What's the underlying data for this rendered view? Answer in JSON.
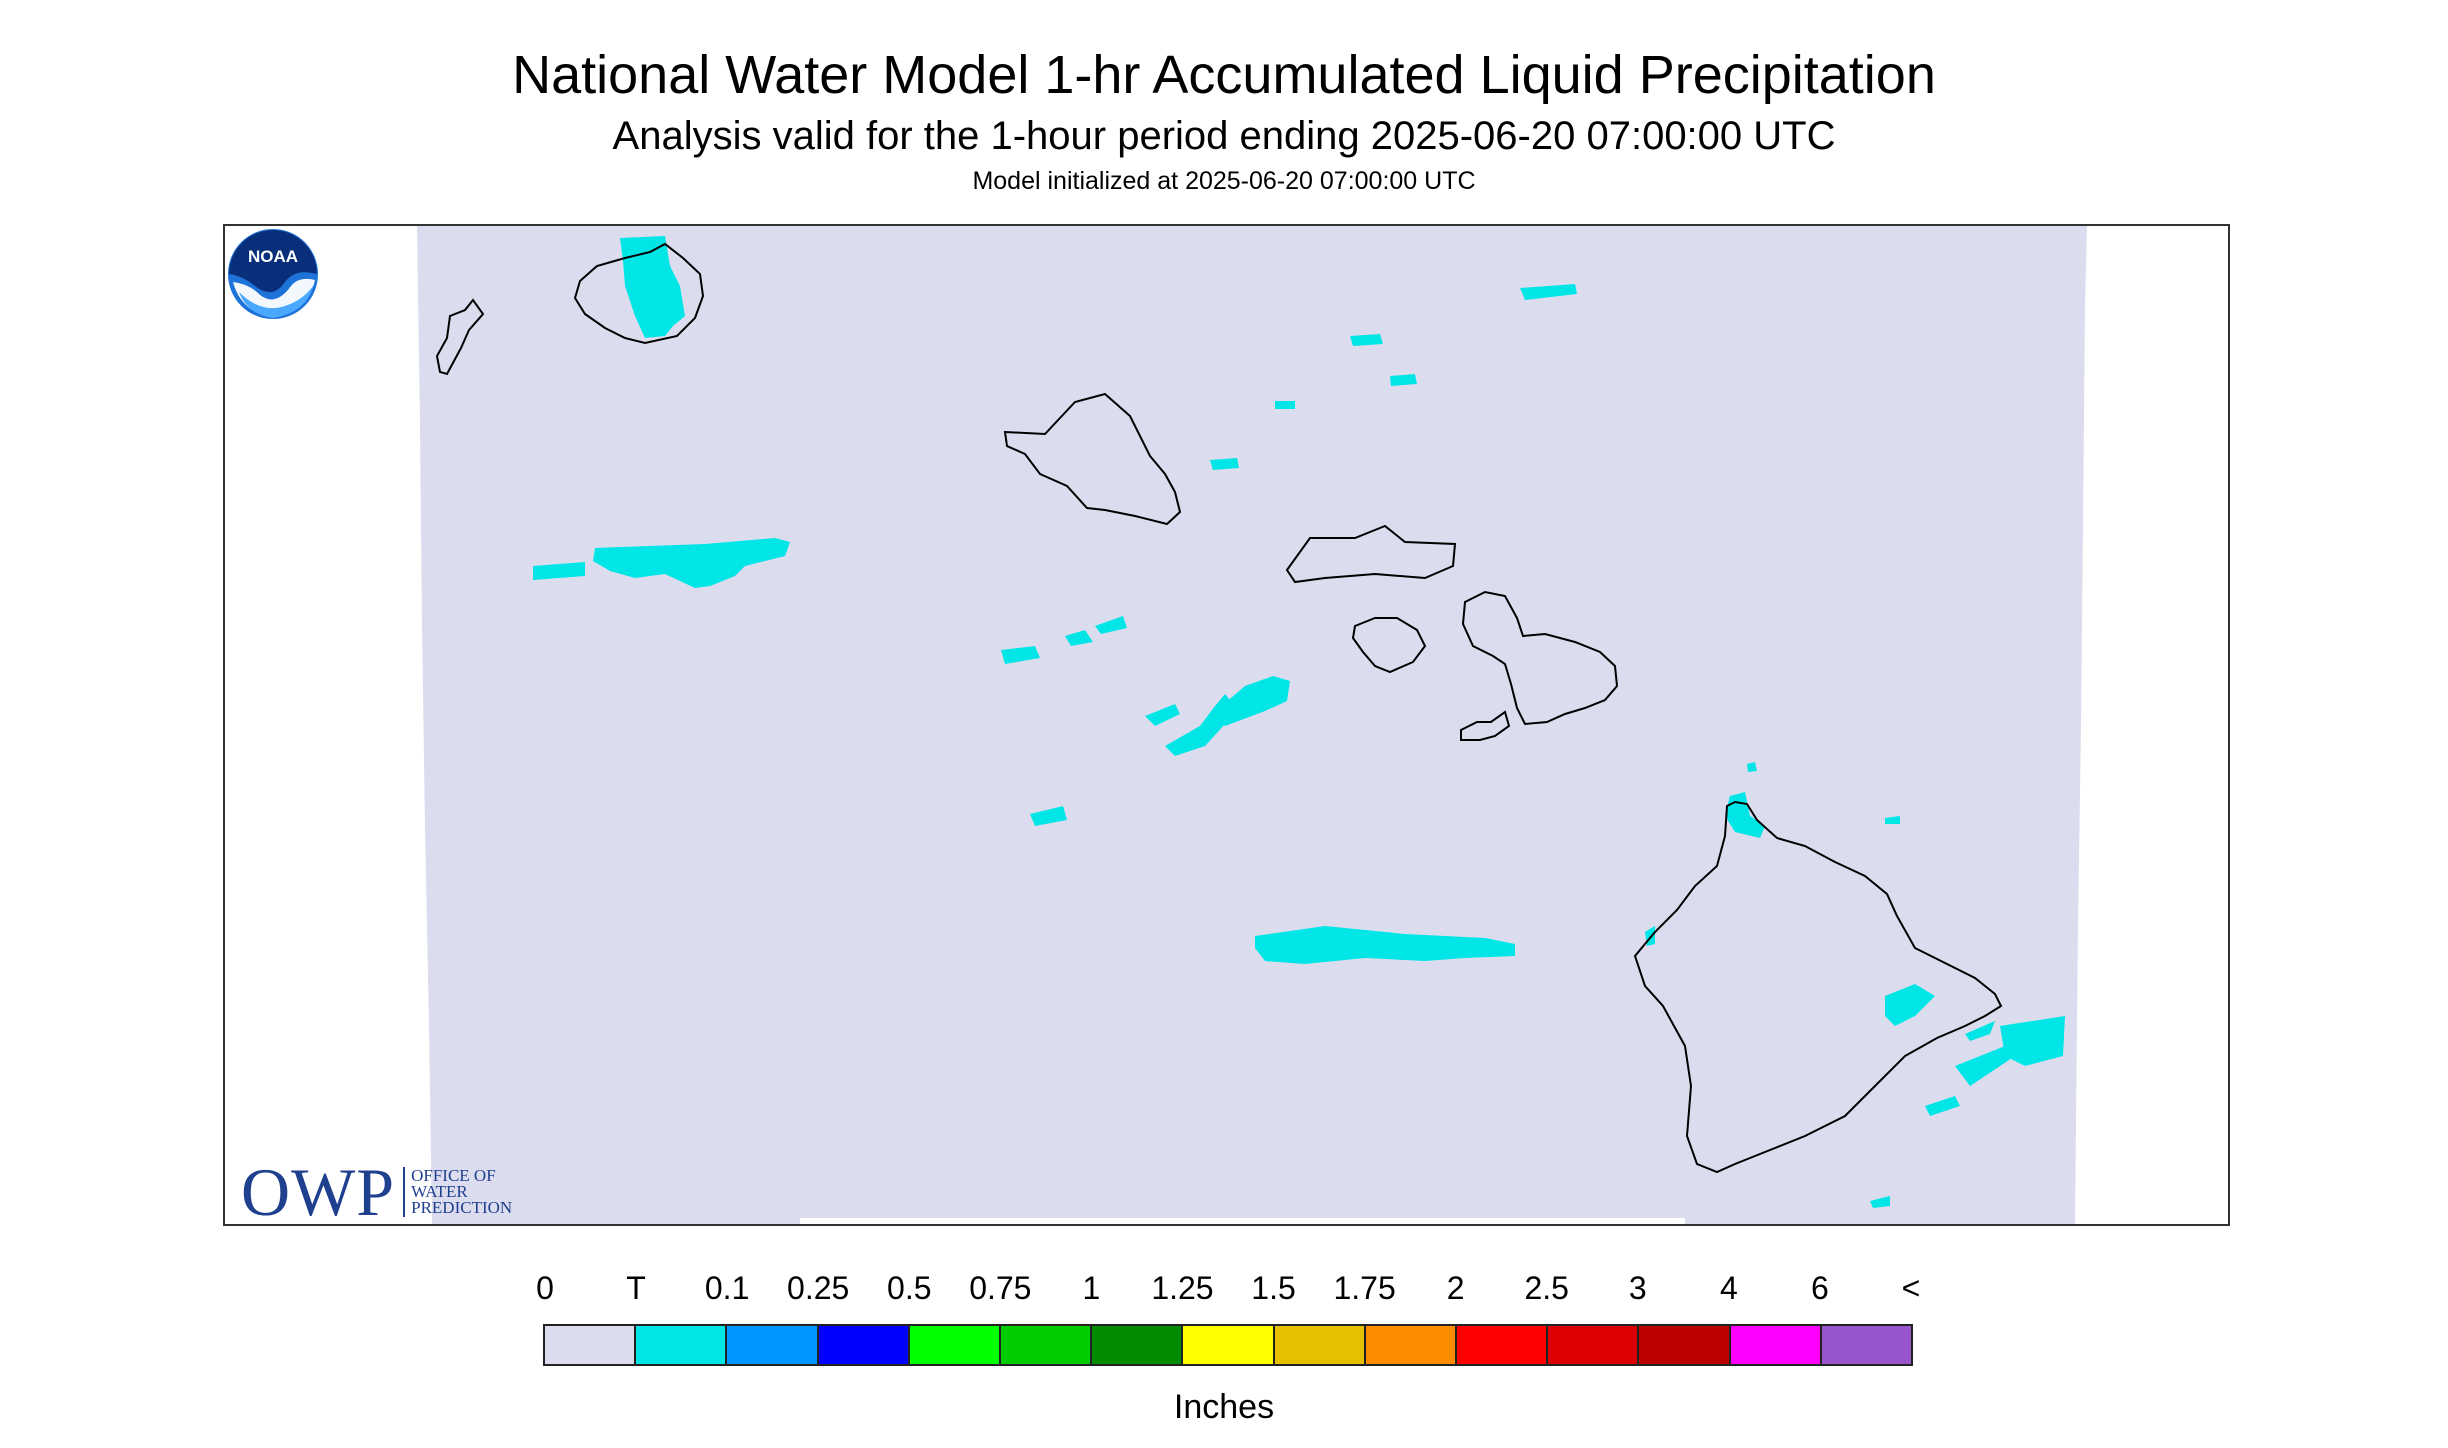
{
  "title": "National Water Model 1-hr Accumulated Liquid Precipitation",
  "subtitle": "Analysis valid for the 1-hour period ending 2025-06-20 07:00:00 UTC",
  "init_text": "Model initialized at 2025-06-20 07:00:00 UTC",
  "logos": {
    "owp_mark": "OWP",
    "owp_line1": "OFFICE OF",
    "owp_line2": "WATER",
    "owp_line3": "PREDICTION",
    "noaa_text": "NOAA"
  },
  "map": {
    "background_color": "#dcdcef",
    "precip_color": "#00e6e6",
    "coastline_color": "#000000"
  },
  "legend": {
    "tick_labels": [
      "0",
      "T",
      "0.1",
      "0.25",
      "0.5",
      "0.75",
      "1",
      "1.25",
      "1.5",
      "1.75",
      "2",
      "2.5",
      "3",
      "4",
      "6",
      "<"
    ],
    "colors": [
      "#dcdcef",
      "#00e6e6",
      "#0096ff",
      "#0000ff",
      "#00ff00",
      "#00cd00",
      "#008b00",
      "#ffff00",
      "#e6c000",
      "#ff8c00",
      "#ff0000",
      "#dd0000",
      "#bb0000",
      "#ff00ff",
      "#9955cc"
    ],
    "units_label": "Inches"
  }
}
